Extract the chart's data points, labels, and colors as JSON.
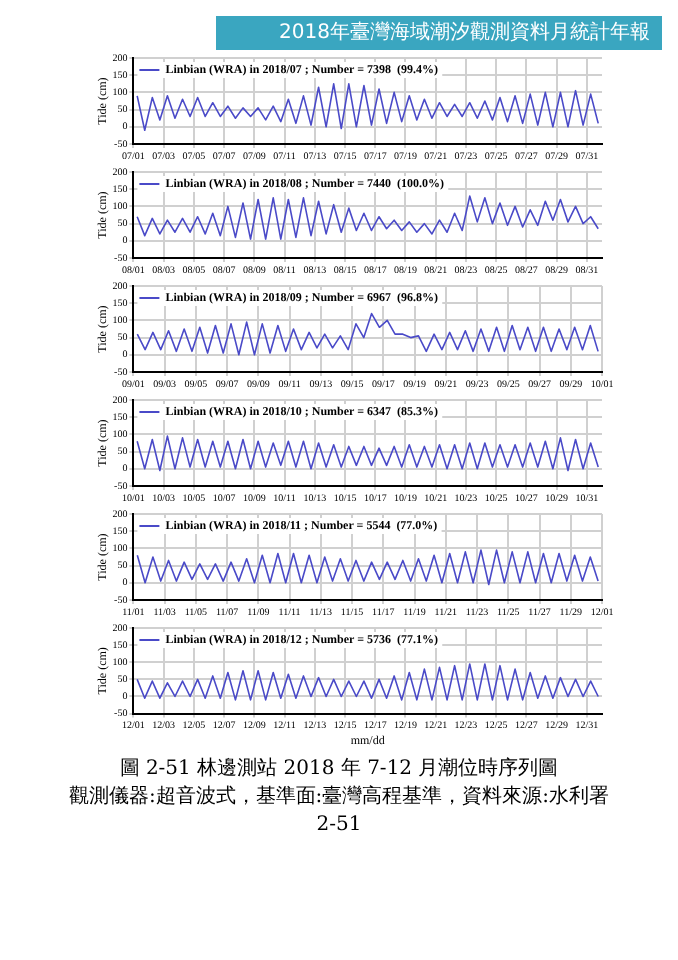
{
  "chart_data": [
    {
      "type": "line",
      "ylabel": "Tide (cm)",
      "xlim": [
        "2018-07-01",
        "2018-08-01"
      ],
      "ylim": [
        -50,
        200
      ],
      "yticks": [
        -50,
        0,
        50,
        100,
        150,
        200
      ],
      "grid": true,
      "legend": "top left",
      "xticks": [
        {
          "value": "2018-07-01",
          "label": "07/01"
        },
        {
          "value": "2018-07-03",
          "label": "07/03"
        },
        {
          "value": "2018-07-05",
          "label": "07/05"
        },
        {
          "value": "2018-07-07",
          "label": "07/07"
        },
        {
          "value": "2018-07-09",
          "label": "07/09"
        },
        {
          "value": "2018-07-11",
          "label": "07/11"
        },
        {
          "value": "2018-07-13",
          "label": "07/13"
        },
        {
          "value": "2018-07-15",
          "label": "07/15"
        },
        {
          "value": "2018-07-17",
          "label": "07/17"
        },
        {
          "value": "2018-07-19",
          "label": "07/19"
        },
        {
          "value": "2018-07-21",
          "label": "07/21"
        },
        {
          "value": "2018-07-23",
          "label": "07/23"
        },
        {
          "value": "2018-07-25",
          "label": "07/25"
        },
        {
          "value": "2018-07-27",
          "label": "07/27"
        },
        {
          "value": "2018-07-29",
          "label": "07/29"
        },
        {
          "value": "2018-07-31",
          "label": "07/31"
        }
      ],
      "series": [
        {
          "name": "Linbian (WRA) in 2018/07 ; Number = 7398  (99.4%)",
          "color": "#4a4ac8",
          "x": [
            "2018-07-01T06:00",
            "2018-07-01T18:00",
            "2018-07-02T06:00",
            "2018-07-02T18:00",
            "2018-07-03T06:00",
            "2018-07-03T18:00",
            "2018-07-04T06:00",
            "2018-07-04T18:00",
            "2018-07-05T06:00",
            "2018-07-05T18:00",
            "2018-07-06T06:00",
            "2018-07-06T18:00",
            "2018-07-07T06:00",
            "2018-07-07T18:00",
            "2018-07-08T06:00",
            "2018-07-08T18:00",
            "2018-07-09T06:00",
            "2018-07-09T18:00",
            "2018-07-10T06:00",
            "2018-07-10T18:00",
            "2018-07-11T06:00",
            "2018-07-11T18:00",
            "2018-07-12T06:00",
            "2018-07-12T18:00",
            "2018-07-13T06:00",
            "2018-07-13T18:00",
            "2018-07-14T06:00",
            "2018-07-14T18:00",
            "2018-07-15T06:00",
            "2018-07-15T18:00",
            "2018-07-16T06:00",
            "2018-07-16T18:00",
            "2018-07-17T06:00",
            "2018-07-17T18:00",
            "2018-07-18T06:00",
            "2018-07-18T18:00",
            "2018-07-19T06:00",
            "2018-07-19T18:00",
            "2018-07-20T06:00",
            "2018-07-20T18:00",
            "2018-07-21T06:00",
            "2018-07-21T18:00",
            "2018-07-22T06:00",
            "2018-07-22T18:00",
            "2018-07-23T06:00",
            "2018-07-23T18:00",
            "2018-07-24T06:00",
            "2018-07-24T18:00",
            "2018-07-25T06:00",
            "2018-07-25T18:00",
            "2018-07-26T06:00",
            "2018-07-26T18:00",
            "2018-07-27T06:00",
            "2018-07-27T18:00",
            "2018-07-28T06:00",
            "2018-07-28T18:00",
            "2018-07-29T06:00",
            "2018-07-29T18:00",
            "2018-07-30T06:00",
            "2018-07-30T18:00",
            "2018-07-31T06:00",
            "2018-07-31T18:00"
          ],
          "values": [
            90,
            -10,
            85,
            20,
            90,
            25,
            80,
            30,
            85,
            30,
            70,
            30,
            60,
            25,
            55,
            30,
            55,
            20,
            60,
            15,
            80,
            10,
            90,
            5,
            115,
            0,
            125,
            -5,
            125,
            0,
            120,
            5,
            110,
            10,
            100,
            15,
            90,
            20,
            80,
            25,
            70,
            30,
            65,
            30,
            70,
            25,
            75,
            20,
            85,
            15,
            90,
            10,
            95,
            5,
            100,
            0,
            100,
            0,
            105,
            5,
            95,
            10
          ]
        }
      ],
      "annotations": [
        "2018年臺灣海域潮汐觀測資料月統計年報"
      ]
    },
    {
      "type": "line",
      "ylabel": "Tide (cm)",
      "xlim": [
        "2018-08-01",
        "2018-09-01"
      ],
      "ylim": [
        -50,
        200
      ],
      "yticks": [
        -50,
        0,
        50,
        100,
        150,
        200
      ],
      "grid": true,
      "legend": "top left",
      "xticks": [
        {
          "value": "2018-08-01",
          "label": "08/01"
        },
        {
          "value": "2018-08-03",
          "label": "08/03"
        },
        {
          "value": "2018-08-05",
          "label": "08/05"
        },
        {
          "value": "2018-08-07",
          "label": "08/07"
        },
        {
          "value": "2018-08-09",
          "label": "08/09"
        },
        {
          "value": "2018-08-11",
          "label": "08/11"
        },
        {
          "value": "2018-08-13",
          "label": "08/13"
        },
        {
          "value": "2018-08-15",
          "label": "08/15"
        },
        {
          "value": "2018-08-17",
          "label": "08/17"
        },
        {
          "value": "2018-08-19",
          "label": "08/19"
        },
        {
          "value": "2018-08-21",
          "label": "08/21"
        },
        {
          "value": "2018-08-23",
          "label": "08/23"
        },
        {
          "value": "2018-08-25",
          "label": "08/25"
        },
        {
          "value": "2018-08-27",
          "label": "08/27"
        },
        {
          "value": "2018-08-29",
          "label": "08/29"
        },
        {
          "value": "2018-08-31",
          "label": "08/31"
        }
      ],
      "series": [
        {
          "name": "Linbian (WRA) in 2018/08 ; Number = 7440  (100.0%)",
          "color": "#4a4ac8",
          "x": [
            "2018-08-01T06:00",
            "2018-08-01T18:00",
            "2018-08-02T06:00",
            "2018-08-02T18:00",
            "2018-08-03T06:00",
            "2018-08-03T18:00",
            "2018-08-04T06:00",
            "2018-08-04T18:00",
            "2018-08-05T06:00",
            "2018-08-05T18:00",
            "2018-08-06T06:00",
            "2018-08-06T18:00",
            "2018-08-07T06:00",
            "2018-08-07T18:00",
            "2018-08-08T06:00",
            "2018-08-08T18:00",
            "2018-08-09T06:00",
            "2018-08-09T18:00",
            "2018-08-10T06:00",
            "2018-08-10T18:00",
            "2018-08-11T06:00",
            "2018-08-11T18:00",
            "2018-08-12T06:00",
            "2018-08-12T18:00",
            "2018-08-13T06:00",
            "2018-08-13T18:00",
            "2018-08-14T06:00",
            "2018-08-14T18:00",
            "2018-08-15T06:00",
            "2018-08-15T18:00",
            "2018-08-16T06:00",
            "2018-08-16T18:00",
            "2018-08-17T06:00",
            "2018-08-17T18:00",
            "2018-08-18T06:00",
            "2018-08-18T18:00",
            "2018-08-19T06:00",
            "2018-08-19T18:00",
            "2018-08-20T06:00",
            "2018-08-20T18:00",
            "2018-08-21T06:00",
            "2018-08-21T18:00",
            "2018-08-22T06:00",
            "2018-08-22T18:00",
            "2018-08-23T06:00",
            "2018-08-23T18:00",
            "2018-08-24T06:00",
            "2018-08-24T18:00",
            "2018-08-25T06:00",
            "2018-08-25T18:00",
            "2018-08-26T06:00",
            "2018-08-26T18:00",
            "2018-08-27T06:00",
            "2018-08-27T18:00",
            "2018-08-28T06:00",
            "2018-08-28T18:00",
            "2018-08-29T06:00",
            "2018-08-29T18:00",
            "2018-08-30T06:00",
            "2018-08-30T18:00",
            "2018-08-31T06:00",
            "2018-08-31T18:00"
          ],
          "values": [
            70,
            15,
            65,
            20,
            60,
            25,
            65,
            25,
            70,
            20,
            80,
            15,
            100,
            10,
            110,
            5,
            120,
            5,
            125,
            5,
            120,
            10,
            125,
            15,
            115,
            20,
            105,
            25,
            95,
            30,
            80,
            30,
            70,
            35,
            60,
            30,
            55,
            25,
            50,
            20,
            60,
            25,
            80,
            30,
            130,
            55,
            125,
            50,
            110,
            45,
            100,
            40,
            90,
            45,
            115,
            60,
            120,
            55,
            100,
            50,
            70,
            35
          ]
        }
      ]
    },
    {
      "type": "line",
      "ylabel": "Tide (cm)",
      "xlim": [
        "2018-09-01",
        "2018-10-01"
      ],
      "ylim": [
        -50,
        200
      ],
      "yticks": [
        -50,
        0,
        50,
        100,
        150,
        200
      ],
      "grid": true,
      "legend": "top left",
      "xticks": [
        {
          "value": "2018-09-01",
          "label": "09/01"
        },
        {
          "value": "2018-09-03",
          "label": "09/03"
        },
        {
          "value": "2018-09-05",
          "label": "09/05"
        },
        {
          "value": "2018-09-07",
          "label": "09/07"
        },
        {
          "value": "2018-09-09",
          "label": "09/09"
        },
        {
          "value": "2018-09-11",
          "label": "09/11"
        },
        {
          "value": "2018-09-13",
          "label": "09/13"
        },
        {
          "value": "2018-09-15",
          "label": "09/15"
        },
        {
          "value": "2018-09-17",
          "label": "09/17"
        },
        {
          "value": "2018-09-19",
          "label": "09/19"
        },
        {
          "value": "2018-09-21",
          "label": "09/21"
        },
        {
          "value": "2018-09-23",
          "label": "09/23"
        },
        {
          "value": "2018-09-25",
          "label": "09/25"
        },
        {
          "value": "2018-09-27",
          "label": "09/27"
        },
        {
          "value": "2018-09-29",
          "label": "09/29"
        },
        {
          "value": "2018-10-01",
          "label": "10/01"
        }
      ],
      "series": [
        {
          "name": "Linbian (WRA) in 2018/09 ; Number = 6967  (96.8%)",
          "color": "#4a4ac8",
          "x": [
            "2018-09-01T06:00",
            "2018-09-01T18:00",
            "2018-09-02T06:00",
            "2018-09-02T18:00",
            "2018-09-03T06:00",
            "2018-09-03T18:00",
            "2018-09-04T06:00",
            "2018-09-04T18:00",
            "2018-09-05T06:00",
            "2018-09-05T18:00",
            "2018-09-06T06:00",
            "2018-09-06T18:00",
            "2018-09-07T06:00",
            "2018-09-07T18:00",
            "2018-09-08T06:00",
            "2018-09-08T18:00",
            "2018-09-09T06:00",
            "2018-09-09T18:00",
            "2018-09-10T06:00",
            "2018-09-10T18:00",
            "2018-09-11T06:00",
            "2018-09-11T18:00",
            "2018-09-12T06:00",
            "2018-09-12T18:00",
            "2018-09-13T06:00",
            "2018-09-13T18:00",
            "2018-09-14T06:00",
            "2018-09-14T18:00",
            "2018-09-15T06:00",
            "2018-09-15T18:00",
            "2018-09-16T06:00",
            "2018-09-16T18:00",
            "2018-09-17T06:00",
            "2018-09-17T18:00",
            "2018-09-18T06:00",
            "2018-09-18T18:00",
            "2018-09-19T06:00",
            "2018-09-19T18:00",
            "2018-09-20T06:00",
            "2018-09-20T18:00",
            "2018-09-21T06:00",
            "2018-09-21T18:00",
            "2018-09-22T06:00",
            "2018-09-22T18:00",
            "2018-09-23T06:00",
            "2018-09-23T18:00",
            "2018-09-24T06:00",
            "2018-09-24T18:00",
            "2018-09-25T06:00",
            "2018-09-25T18:00",
            "2018-09-26T06:00",
            "2018-09-26T18:00",
            "2018-09-27T06:00",
            "2018-09-27T18:00",
            "2018-09-28T06:00",
            "2018-09-28T18:00",
            "2018-09-29T06:00",
            "2018-09-29T18:00",
            "2018-09-30T06:00",
            "2018-09-30T18:00"
          ],
          "values": [
            60,
            15,
            65,
            15,
            70,
            10,
            75,
            10,
            80,
            5,
            85,
            5,
            90,
            0,
            95,
            0,
            90,
            5,
            85,
            10,
            75,
            15,
            65,
            20,
            60,
            20,
            55,
            15,
            90,
            50,
            120,
            80,
            100,
            60,
            60,
            50,
            55,
            10,
            60,
            15,
            65,
            15,
            70,
            10,
            75,
            10,
            80,
            10,
            85,
            15,
            80,
            10,
            80,
            10,
            75,
            15,
            80,
            15,
            85,
            10
          ]
        }
      ]
    },
    {
      "type": "line",
      "ylabel": "Tide (cm)",
      "xlim": [
        "2018-10-01",
        "2018-11-01"
      ],
      "ylim": [
        -50,
        200
      ],
      "yticks": [
        -50,
        0,
        50,
        100,
        150,
        200
      ],
      "grid": true,
      "legend": "top left",
      "xticks": [
        {
          "value": "2018-10-01",
          "label": "10/01"
        },
        {
          "value": "2018-10-03",
          "label": "10/03"
        },
        {
          "value": "2018-10-05",
          "label": "10/05"
        },
        {
          "value": "2018-10-07",
          "label": "10/07"
        },
        {
          "value": "2018-10-09",
          "label": "10/09"
        },
        {
          "value": "2018-10-11",
          "label": "10/11"
        },
        {
          "value": "2018-10-13",
          "label": "10/13"
        },
        {
          "value": "2018-10-15",
          "label": "10/15"
        },
        {
          "value": "2018-10-17",
          "label": "10/17"
        },
        {
          "value": "2018-10-19",
          "label": "10/19"
        },
        {
          "value": "2018-10-21",
          "label": "10/21"
        },
        {
          "value": "2018-10-23",
          "label": "10/23"
        },
        {
          "value": "2018-10-25",
          "label": "10/25"
        },
        {
          "value": "2018-10-27",
          "label": "10/27"
        },
        {
          "value": "2018-10-29",
          "label": "10/29"
        },
        {
          "value": "2018-10-31",
          "label": "10/31"
        }
      ],
      "series": [
        {
          "name": "Linbian (WRA) in 2018/10 ; Number = 6347  (85.3%)",
          "color": "#4a4ac8",
          "x": [
            "2018-10-01T06:00",
            "2018-10-01T18:00",
            "2018-10-02T06:00",
            "2018-10-02T18:00",
            "2018-10-03T06:00",
            "2018-10-03T18:00",
            "2018-10-04T06:00",
            "2018-10-04T18:00",
            "2018-10-05T06:00",
            "2018-10-05T18:00",
            "2018-10-06T06:00",
            "2018-10-06T18:00",
            "2018-10-07T06:00",
            "2018-10-07T18:00",
            "2018-10-08T06:00",
            "2018-10-08T18:00",
            "2018-10-09T06:00",
            "2018-10-09T18:00",
            "2018-10-10T06:00",
            "2018-10-10T18:00",
            "2018-10-11T06:00",
            "2018-10-11T18:00",
            "2018-10-12T06:00",
            "2018-10-12T18:00",
            "2018-10-13T06:00",
            "2018-10-13T18:00",
            "2018-10-14T06:00",
            "2018-10-14T18:00",
            "2018-10-15T06:00",
            "2018-10-15T18:00",
            "2018-10-16T06:00",
            "2018-10-16T18:00",
            "2018-10-17T06:00",
            "2018-10-17T18:00",
            "2018-10-18T06:00",
            "2018-10-18T18:00",
            "2018-10-19T06:00",
            "2018-10-19T18:00",
            "2018-10-20T06:00",
            "2018-10-20T18:00",
            "2018-10-21T06:00",
            "2018-10-21T18:00",
            "2018-10-22T06:00",
            "2018-10-22T18:00",
            "2018-10-23T06:00",
            "2018-10-23T18:00",
            "2018-10-24T06:00",
            "2018-10-24T18:00",
            "2018-10-25T06:00",
            "2018-10-25T18:00",
            "2018-10-26T06:00",
            "2018-10-26T18:00",
            "2018-10-27T06:00",
            "2018-10-27T18:00",
            "2018-10-28T06:00",
            "2018-10-28T18:00",
            "2018-10-29T06:00",
            "2018-10-29T18:00",
            "2018-10-30T06:00",
            "2018-10-30T18:00",
            "2018-10-31T06:00",
            "2018-10-31T18:00"
          ],
          "values": [
            80,
            0,
            85,
            -5,
            95,
            0,
            90,
            5,
            85,
            5,
            80,
            5,
            80,
            0,
            85,
            0,
            80,
            5,
            75,
            10,
            80,
            5,
            80,
            0,
            75,
            5,
            70,
            5,
            65,
            10,
            65,
            10,
            60,
            10,
            65,
            5,
            70,
            5,
            65,
            5,
            70,
            0,
            70,
            0,
            75,
            0,
            75,
            5,
            70,
            5,
            70,
            5,
            75,
            5,
            80,
            0,
            90,
            -5,
            85,
            0,
            75,
            5
          ]
        }
      ]
    },
    {
      "type": "line",
      "ylabel": "Tide (cm)",
      "xlim": [
        "2018-11-01",
        "2018-12-01"
      ],
      "ylim": [
        -50,
        200
      ],
      "yticks": [
        -50,
        0,
        50,
        100,
        150,
        200
      ],
      "grid": true,
      "legend": "top left",
      "xticks": [
        {
          "value": "2018-11-01",
          "label": "11/01"
        },
        {
          "value": "2018-11-03",
          "label": "11/03"
        },
        {
          "value": "2018-11-05",
          "label": "11/05"
        },
        {
          "value": "2018-11-07",
          "label": "11/07"
        },
        {
          "value": "2018-11-09",
          "label": "11/09"
        },
        {
          "value": "2018-11-11",
          "label": "11/11"
        },
        {
          "value": "2018-11-13",
          "label": "11/13"
        },
        {
          "value": "2018-11-15",
          "label": "11/15"
        },
        {
          "value": "2018-11-17",
          "label": "11/17"
        },
        {
          "value": "2018-11-19",
          "label": "11/19"
        },
        {
          "value": "2018-11-21",
          "label": "11/21"
        },
        {
          "value": "2018-11-23",
          "label": "11/23"
        },
        {
          "value": "2018-11-25",
          "label": "11/25"
        },
        {
          "value": "2018-11-27",
          "label": "11/27"
        },
        {
          "value": "2018-11-29",
          "label": "11/29"
        },
        {
          "value": "2018-12-01",
          "label": "12/01"
        }
      ],
      "series": [
        {
          "name": "Linbian (WRA) in 2018/11 ; Number = 5544  (77.0%)",
          "color": "#4a4ac8",
          "x": [
            "2018-11-01T06:00",
            "2018-11-01T18:00",
            "2018-11-02T06:00",
            "2018-11-02T18:00",
            "2018-11-03T06:00",
            "2018-11-03T18:00",
            "2018-11-04T06:00",
            "2018-11-04T18:00",
            "2018-11-05T06:00",
            "2018-11-05T18:00",
            "2018-11-06T06:00",
            "2018-11-06T18:00",
            "2018-11-07T06:00",
            "2018-11-07T18:00",
            "2018-11-08T06:00",
            "2018-11-08T18:00",
            "2018-11-09T06:00",
            "2018-11-09T18:00",
            "2018-11-10T06:00",
            "2018-11-10T18:00",
            "2018-11-11T06:00",
            "2018-11-11T18:00",
            "2018-11-12T06:00",
            "2018-11-12T18:00",
            "2018-11-13T06:00",
            "2018-11-13T18:00",
            "2018-11-14T06:00",
            "2018-11-14T18:00",
            "2018-11-15T06:00",
            "2018-11-15T18:00",
            "2018-11-16T06:00",
            "2018-11-16T18:00",
            "2018-11-17T06:00",
            "2018-11-17T18:00",
            "2018-11-18T06:00",
            "2018-11-18T18:00",
            "2018-11-19T06:00",
            "2018-11-19T18:00",
            "2018-11-20T06:00",
            "2018-11-20T18:00",
            "2018-11-21T06:00",
            "2018-11-21T18:00",
            "2018-11-22T06:00",
            "2018-11-22T18:00",
            "2018-11-23T06:00",
            "2018-11-23T18:00",
            "2018-11-24T06:00",
            "2018-11-24T18:00",
            "2018-11-25T06:00",
            "2018-11-25T18:00",
            "2018-11-26T06:00",
            "2018-11-26T18:00",
            "2018-11-27T06:00",
            "2018-11-27T18:00",
            "2018-11-28T06:00",
            "2018-11-28T18:00",
            "2018-11-29T06:00",
            "2018-11-29T18:00",
            "2018-11-30T06:00",
            "2018-11-30T18:00"
          ],
          "values": [
            80,
            0,
            75,
            5,
            65,
            5,
            60,
            10,
            55,
            10,
            55,
            5,
            60,
            5,
            70,
            0,
            80,
            0,
            85,
            0,
            85,
            0,
            80,
            0,
            75,
            5,
            70,
            5,
            65,
            5,
            60,
            10,
            60,
            10,
            65,
            5,
            70,
            5,
            80,
            0,
            85,
            0,
            90,
            0,
            95,
            -5,
            95,
            0,
            90,
            0,
            90,
            0,
            85,
            0,
            85,
            5,
            80,
            5,
            75,
            5
          ]
        }
      ]
    },
    {
      "type": "line",
      "ylabel": "Tide (cm)",
      "xlabel": "mm/dd",
      "xlim": [
        "2018-12-01",
        "2019-01-01"
      ],
      "ylim": [
        -50,
        200
      ],
      "yticks": [
        -50,
        0,
        50,
        100,
        150,
        200
      ],
      "grid": true,
      "legend": "top left",
      "xticks": [
        {
          "value": "2018-12-01",
          "label": "12/01"
        },
        {
          "value": "2018-12-03",
          "label": "12/03"
        },
        {
          "value": "2018-12-05",
          "label": "12/05"
        },
        {
          "value": "2018-12-07",
          "label": "12/07"
        },
        {
          "value": "2018-12-09",
          "label": "12/09"
        },
        {
          "value": "2018-12-11",
          "label": "12/11"
        },
        {
          "value": "2018-12-13",
          "label": "12/13"
        },
        {
          "value": "2018-12-15",
          "label": "12/15"
        },
        {
          "value": "2018-12-17",
          "label": "12/17"
        },
        {
          "value": "2018-12-19",
          "label": "12/19"
        },
        {
          "value": "2018-12-21",
          "label": "12/21"
        },
        {
          "value": "2018-12-23",
          "label": "12/23"
        },
        {
          "value": "2018-12-25",
          "label": "12/25"
        },
        {
          "value": "2018-12-27",
          "label": "12/27"
        },
        {
          "value": "2018-12-29",
          "label": "12/29"
        },
        {
          "value": "2018-12-31",
          "label": "12/31"
        }
      ],
      "series": [
        {
          "name": "Linbian (WRA) in 2018/12 ; Number = 5736  (77.1%)",
          "color": "#4a4ac8",
          "x": [
            "2018-12-01T06:00",
            "2018-12-01T18:00",
            "2018-12-02T06:00",
            "2018-12-02T18:00",
            "2018-12-03T06:00",
            "2018-12-03T18:00",
            "2018-12-04T06:00",
            "2018-12-04T18:00",
            "2018-12-05T06:00",
            "2018-12-05T18:00",
            "2018-12-06T06:00",
            "2018-12-06T18:00",
            "2018-12-07T06:00",
            "2018-12-07T18:00",
            "2018-12-08T06:00",
            "2018-12-08T18:00",
            "2018-12-09T06:00",
            "2018-12-09T18:00",
            "2018-12-10T06:00",
            "2018-12-10T18:00",
            "2018-12-11T06:00",
            "2018-12-11T18:00",
            "2018-12-12T06:00",
            "2018-12-12T18:00",
            "2018-12-13T06:00",
            "2018-12-13T18:00",
            "2018-12-14T06:00",
            "2018-12-14T18:00",
            "2018-12-15T06:00",
            "2018-12-15T18:00",
            "2018-12-16T06:00",
            "2018-12-16T18:00",
            "2018-12-17T06:00",
            "2018-12-17T18:00",
            "2018-12-18T06:00",
            "2018-12-18T18:00",
            "2018-12-19T06:00",
            "2018-12-19T18:00",
            "2018-12-20T06:00",
            "2018-12-20T18:00",
            "2018-12-21T06:00",
            "2018-12-21T18:00",
            "2018-12-22T06:00",
            "2018-12-22T18:00",
            "2018-12-23T06:00",
            "2018-12-23T18:00",
            "2018-12-24T06:00",
            "2018-12-24T18:00",
            "2018-12-25T06:00",
            "2018-12-25T18:00",
            "2018-12-26T06:00",
            "2018-12-26T18:00",
            "2018-12-27T06:00",
            "2018-12-27T18:00",
            "2018-12-28T06:00",
            "2018-12-28T18:00",
            "2018-12-29T06:00",
            "2018-12-29T18:00",
            "2018-12-30T06:00",
            "2018-12-30T18:00",
            "2018-12-31T06:00",
            "2018-12-31T18:00"
          ],
          "values": [
            50,
            -5,
            45,
            -5,
            40,
            0,
            45,
            0,
            50,
            -5,
            60,
            -5,
            70,
            -10,
            75,
            -10,
            75,
            -10,
            70,
            -5,
            65,
            -5,
            60,
            0,
            55,
            0,
            50,
            0,
            45,
            0,
            45,
            -5,
            50,
            -5,
            60,
            -10,
            70,
            -10,
            80,
            -10,
            85,
            -10,
            90,
            -10,
            95,
            -10,
            95,
            -10,
            90,
            -10,
            80,
            -10,
            70,
            -5,
            60,
            -5,
            55,
            0,
            50,
            0,
            45,
            0
          ]
        }
      ],
      "annotations": [
        "圖 2-51  林邊測站 2018 年 7-12 月潮位時序列圖",
        "觀測儀器:超音波式，基準面:臺灣高程基準，資料來源:水利署",
        "2-51"
      ]
    }
  ]
}
